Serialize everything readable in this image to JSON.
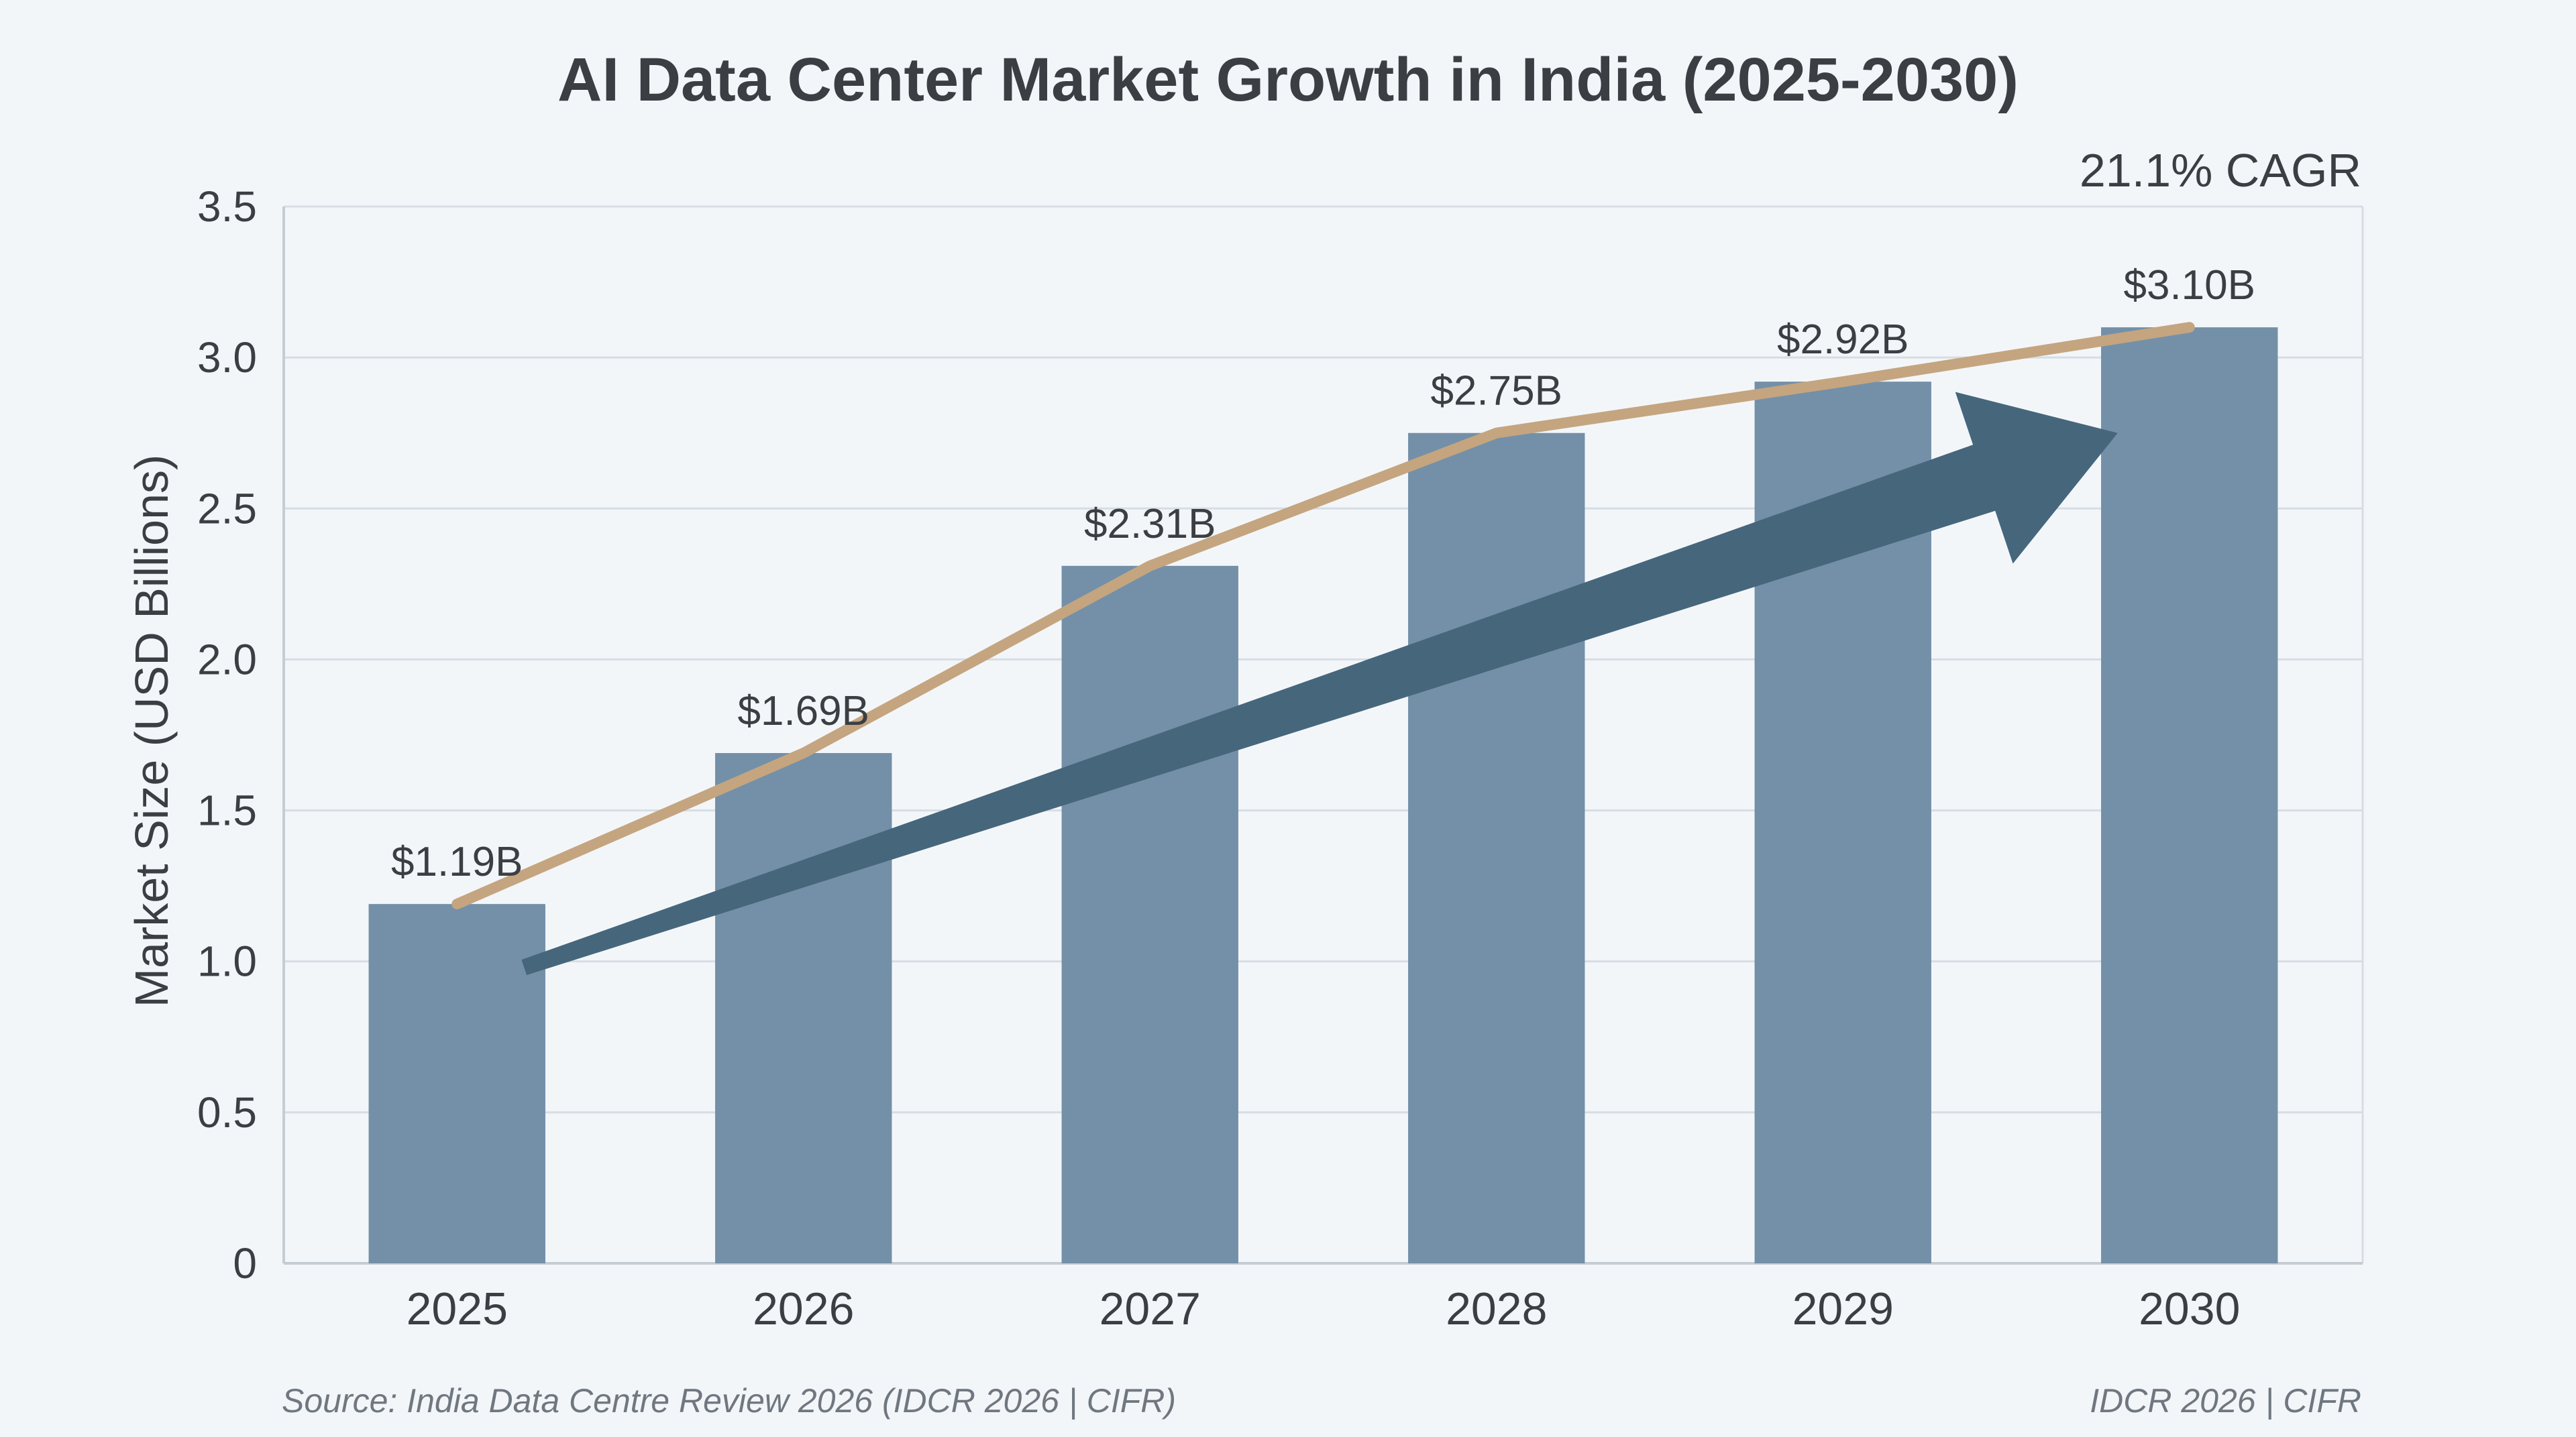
{
  "chart_data": {
    "type": "bar",
    "title": "AI Data Center Market Growth in India (2025-2030)",
    "categories": [
      "2025",
      "2026",
      "2027",
      "2028",
      "2029",
      "2030"
    ],
    "values": [
      1.19,
      1.69,
      2.31,
      2.75,
      2.92,
      3.1
    ],
    "data_labels": [
      "$1.19B",
      "$1.69B",
      "$2.31B",
      "$2.75B",
      "$2.92B",
      "$3.10B"
    ],
    "overlay_line": {
      "type": "line",
      "values": [
        1.19,
        1.69,
        2.31,
        2.75,
        2.92,
        3.1
      ]
    },
    "trend_arrow": {
      "from": {
        "x": "2025",
        "y": 0.98
      },
      "to": {
        "x": "2030",
        "y": 2.75
      }
    },
    "annotation": "21.1% CAGR",
    "xlabel": "",
    "ylabel": "Market Size (USD Billions)",
    "ylim": [
      0,
      3.5
    ],
    "yticks": [
      0,
      0.5,
      1.0,
      1.5,
      2.0,
      2.5,
      3.0,
      3.5
    ],
    "ytick_labels": [
      "0",
      "0.5",
      "1.0",
      "1.5",
      "2.0",
      "2.5",
      "3.0",
      "3.5"
    ],
    "grid": true,
    "colors": {
      "bar": "#7390a8",
      "line": "#c4a57f",
      "arrow": "#46667c",
      "grid": "#d6dde4",
      "axis": "#c4ccd4",
      "background": "#f3f6f9"
    }
  },
  "footer": {
    "source": "Source: India Data Centre Review 2026 (IDCR 2026 | CIFR)",
    "credit": "IDCR 2026 | CIFR"
  }
}
